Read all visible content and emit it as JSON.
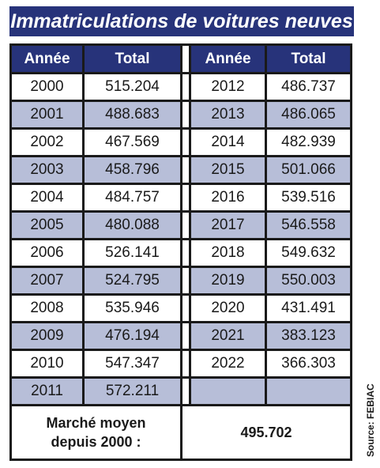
{
  "title": "Immatriculations de voitures neuves",
  "chart_data": {
    "type": "table",
    "columns": [
      "Année",
      "Total",
      "Année",
      "Total"
    ],
    "left": [
      {
        "year": "2000",
        "total": "515.204"
      },
      {
        "year": "2001",
        "total": "488.683"
      },
      {
        "year": "2002",
        "total": "467.569"
      },
      {
        "year": "2003",
        "total": "458.796"
      },
      {
        "year": "2004",
        "total": "484.757"
      },
      {
        "year": "2005",
        "total": "480.088"
      },
      {
        "year": "2006",
        "total": "526.141"
      },
      {
        "year": "2007",
        "total": "524.795"
      },
      {
        "year": "2008",
        "total": "535.946"
      },
      {
        "year": "2009",
        "total": "476.194"
      },
      {
        "year": "2010",
        "total": "547.347"
      },
      {
        "year": "2011",
        "total": "572.211"
      }
    ],
    "right": [
      {
        "year": "2012",
        "total": "486.737"
      },
      {
        "year": "2013",
        "total": "486.065"
      },
      {
        "year": "2014",
        "total": "482.939"
      },
      {
        "year": "2015",
        "total": "501.066"
      },
      {
        "year": "2016",
        "total": "539.516"
      },
      {
        "year": "2017",
        "total": "546.558"
      },
      {
        "year": "2018",
        "total": "549.632"
      },
      {
        "year": "2019",
        "total": "550.003"
      },
      {
        "year": "2020",
        "total": "431.491"
      },
      {
        "year": "2021",
        "total": "383.123"
      },
      {
        "year": "2022",
        "total": "366.303"
      },
      {
        "year": "",
        "total": ""
      }
    ],
    "footer_label_line1": "Marché moyen",
    "footer_label_line2": "depuis 2000 :",
    "footer_value": "495.702"
  },
  "source": "Source: FEBIAC",
  "colors": {
    "header_bg": "#27337a",
    "stripe_bg": "#b7bed8",
    "border": "#1a1a1a"
  }
}
